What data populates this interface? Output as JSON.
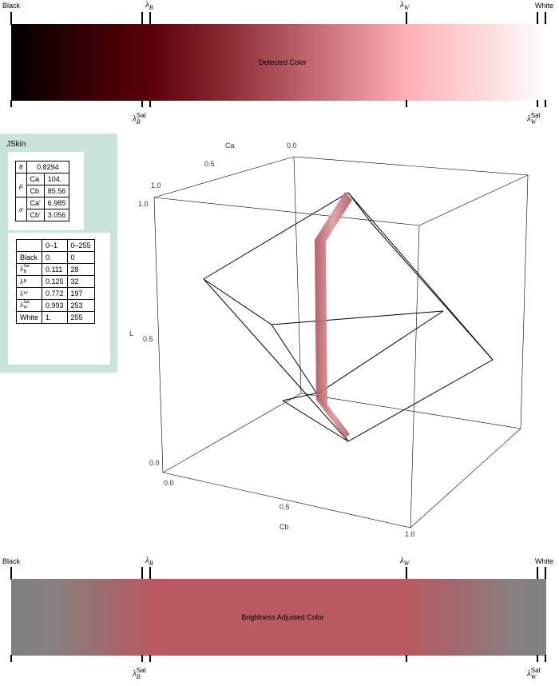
{
  "top_bar": {
    "center_text": "Detected Color",
    "labels_top": {
      "black": "Black",
      "white": "White"
    },
    "lambda_B": {
      "symbol": "λ",
      "sub": "B"
    },
    "lambda_W": {
      "symbol": "λ",
      "sub": "W"
    },
    "lambda_B_sat": {
      "symbol": "λ",
      "sub": "B",
      "sup": "Sat"
    },
    "lambda_W_sat": {
      "symbol": "λ",
      "sub": "W",
      "sup": "Sat"
    },
    "colors": [
      "#000000",
      "#5a0008",
      "#b04a55",
      "#ffb0b6",
      "#ffffff"
    ]
  },
  "bottom_bar": {
    "center_text": "Brightness Adjusted Color",
    "labels_top": {
      "black": "Black",
      "white": "White"
    },
    "lambda_B": {
      "symbol": "λ",
      "sub": "B"
    },
    "lambda_W": {
      "symbol": "λ",
      "sub": "W"
    },
    "lambda_B_sat": {
      "symbol": "λ",
      "sub": "B",
      "sup": "Sat"
    },
    "lambda_W_sat": {
      "symbol": "λ",
      "sub": "W",
      "sup": "Sat"
    },
    "colors": [
      "#808080",
      "#b85a60",
      "#808080"
    ]
  },
  "jskin": {
    "title": "JSkin",
    "theta": {
      "label": "θ",
      "value": "0.8294"
    },
    "mu": {
      "label": "μ",
      "rows": [
        {
          "k": "Ca",
          "v": "104."
        },
        {
          "k": "Cb",
          "v": "85.56"
        }
      ]
    },
    "sigma": {
      "label": "σ",
      "rows": [
        {
          "k": "Ca'",
          "v": "6.985"
        },
        {
          "k": "Cb'",
          "v": "3.056"
        }
      ]
    },
    "levels": {
      "headers": [
        "",
        "0–1",
        "0–255"
      ],
      "rows": [
        {
          "name": "Black",
          "sub": "",
          "sup": "",
          "v01": "0.",
          "v255": "0"
        },
        {
          "name": "λ",
          "sub": "B",
          "sup": "Sat",
          "v01": "0.111",
          "v255": "28"
        },
        {
          "name": "λ",
          "sub": "B",
          "sup": "",
          "v01": "0.125",
          "v255": "32"
        },
        {
          "name": "λ",
          "sub": "W",
          "sup": "",
          "v01": "0.772",
          "v255": "197"
        },
        {
          "name": "λ",
          "sub": "W",
          "sup": "Sat",
          "v01": "0.993",
          "v255": "253"
        },
        {
          "name": "White",
          "sub": "",
          "sup": "",
          "v01": "1.",
          "v255": "255"
        }
      ]
    }
  },
  "plot3d": {
    "axis_ca": {
      "label": "Ca",
      "ticks": [
        "0.0",
        "0.5",
        "1.0"
      ]
    },
    "axis_l": {
      "label": "L",
      "ticks": [
        "1.0",
        "0.5",
        "0.0"
      ]
    },
    "axis_cb": {
      "label": "Cb",
      "ticks": [
        "0.0",
        "0.5",
        "1.0"
      ]
    },
    "tube_color": "#c8787c"
  }
}
